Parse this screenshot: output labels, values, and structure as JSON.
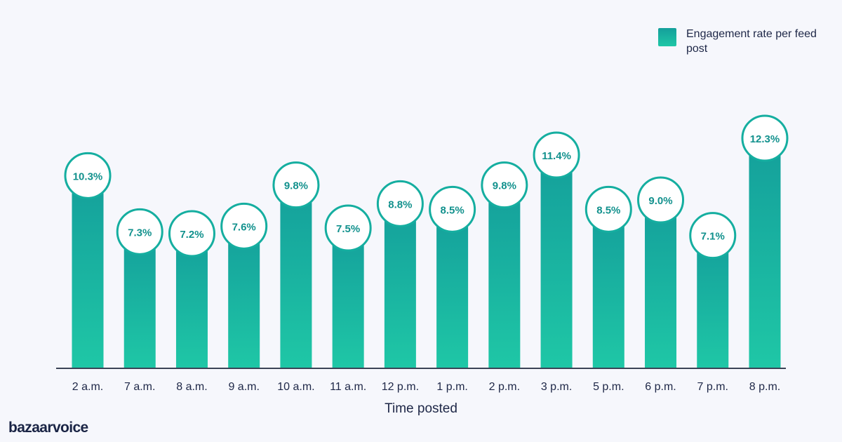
{
  "chart_data": {
    "type": "bar",
    "title": "",
    "xlabel": "Time posted",
    "ylabel": "",
    "ylim": [
      0,
      15
    ],
    "categories": [
      "2 a.m.",
      "7 a.m.",
      "8 a.m.",
      "9 a.m.",
      "10 a.m.",
      "11 a.m.",
      "12 p.m.",
      "1 p.m.",
      "2 p.m.",
      "3 p.m.",
      "5 p.m.",
      "6 p.m.",
      "7 p.m.",
      "8 p.m."
    ],
    "series": [
      {
        "name": "Engagement rate per feed post",
        "values": [
          10.3,
          7.3,
          7.2,
          7.6,
          9.8,
          7.5,
          8.8,
          8.5,
          9.8,
          11.4,
          8.5,
          9.0,
          7.1,
          12.3
        ]
      }
    ],
    "data_labels": [
      "10.3%",
      "7.3%",
      "7.2%",
      "7.6%",
      "9.8%",
      "7.5%",
      "8.8%",
      "8.5%",
      "9.8%",
      "11.4%",
      "8.5%",
      "9.0%",
      "7.1%",
      "12.3%"
    ],
    "legend_position": "top-right",
    "grid": false,
    "colors": {
      "bar_top": "#149f9b",
      "bar_bottom": "#1fc7a6",
      "label_text": "#12918d",
      "axis": "#3b4356",
      "text": "#1e2747"
    }
  },
  "legend": {
    "label": "Engagement rate per feed post"
  },
  "brand": {
    "logo_text": "bazaarvoice"
  }
}
